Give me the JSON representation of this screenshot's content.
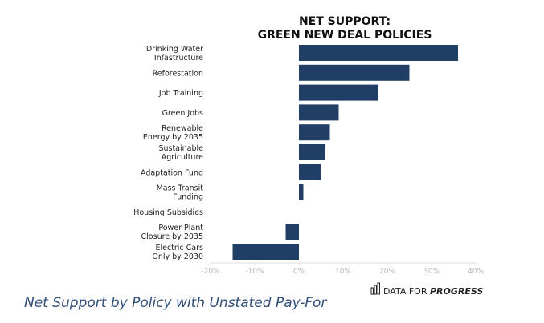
{
  "chart_data": {
    "type": "bar",
    "orientation": "horizontal",
    "title_lines": [
      "NET SUPPORT:",
      "GREEN NEW DEAL POLICIES"
    ],
    "categories": [
      [
        "Drinking Water",
        "Infastructure"
      ],
      [
        "Reforestation"
      ],
      [
        "Job Training"
      ],
      [
        "Green Jobs"
      ],
      [
        "Renewable",
        "Energy by 2035"
      ],
      [
        "Sustainable",
        "Agriculture"
      ],
      [
        "Adaptation Fund"
      ],
      [
        "Mass Transit",
        "Funding"
      ],
      [
        "Housing Subsidies"
      ],
      [
        "Power Plant",
        "Closure by 2035"
      ],
      [
        "Electric Cars",
        "Only by 2030"
      ]
    ],
    "values": [
      36,
      25,
      18,
      9,
      7,
      6,
      5,
      1,
      0,
      -3,
      -15
    ],
    "xlim": [
      -20,
      40
    ],
    "xticks": [
      -20,
      -10,
      0,
      10,
      20,
      30,
      40
    ],
    "tick_suffix": "%",
    "bar_color": "#213f66",
    "grid": false
  },
  "brand": {
    "prefix": "DATA FOR ",
    "emphasis": "PROGRESS",
    "icon": "bar-chart-icon"
  },
  "caption": "Net Support by Policy with Unstated Pay-For"
}
